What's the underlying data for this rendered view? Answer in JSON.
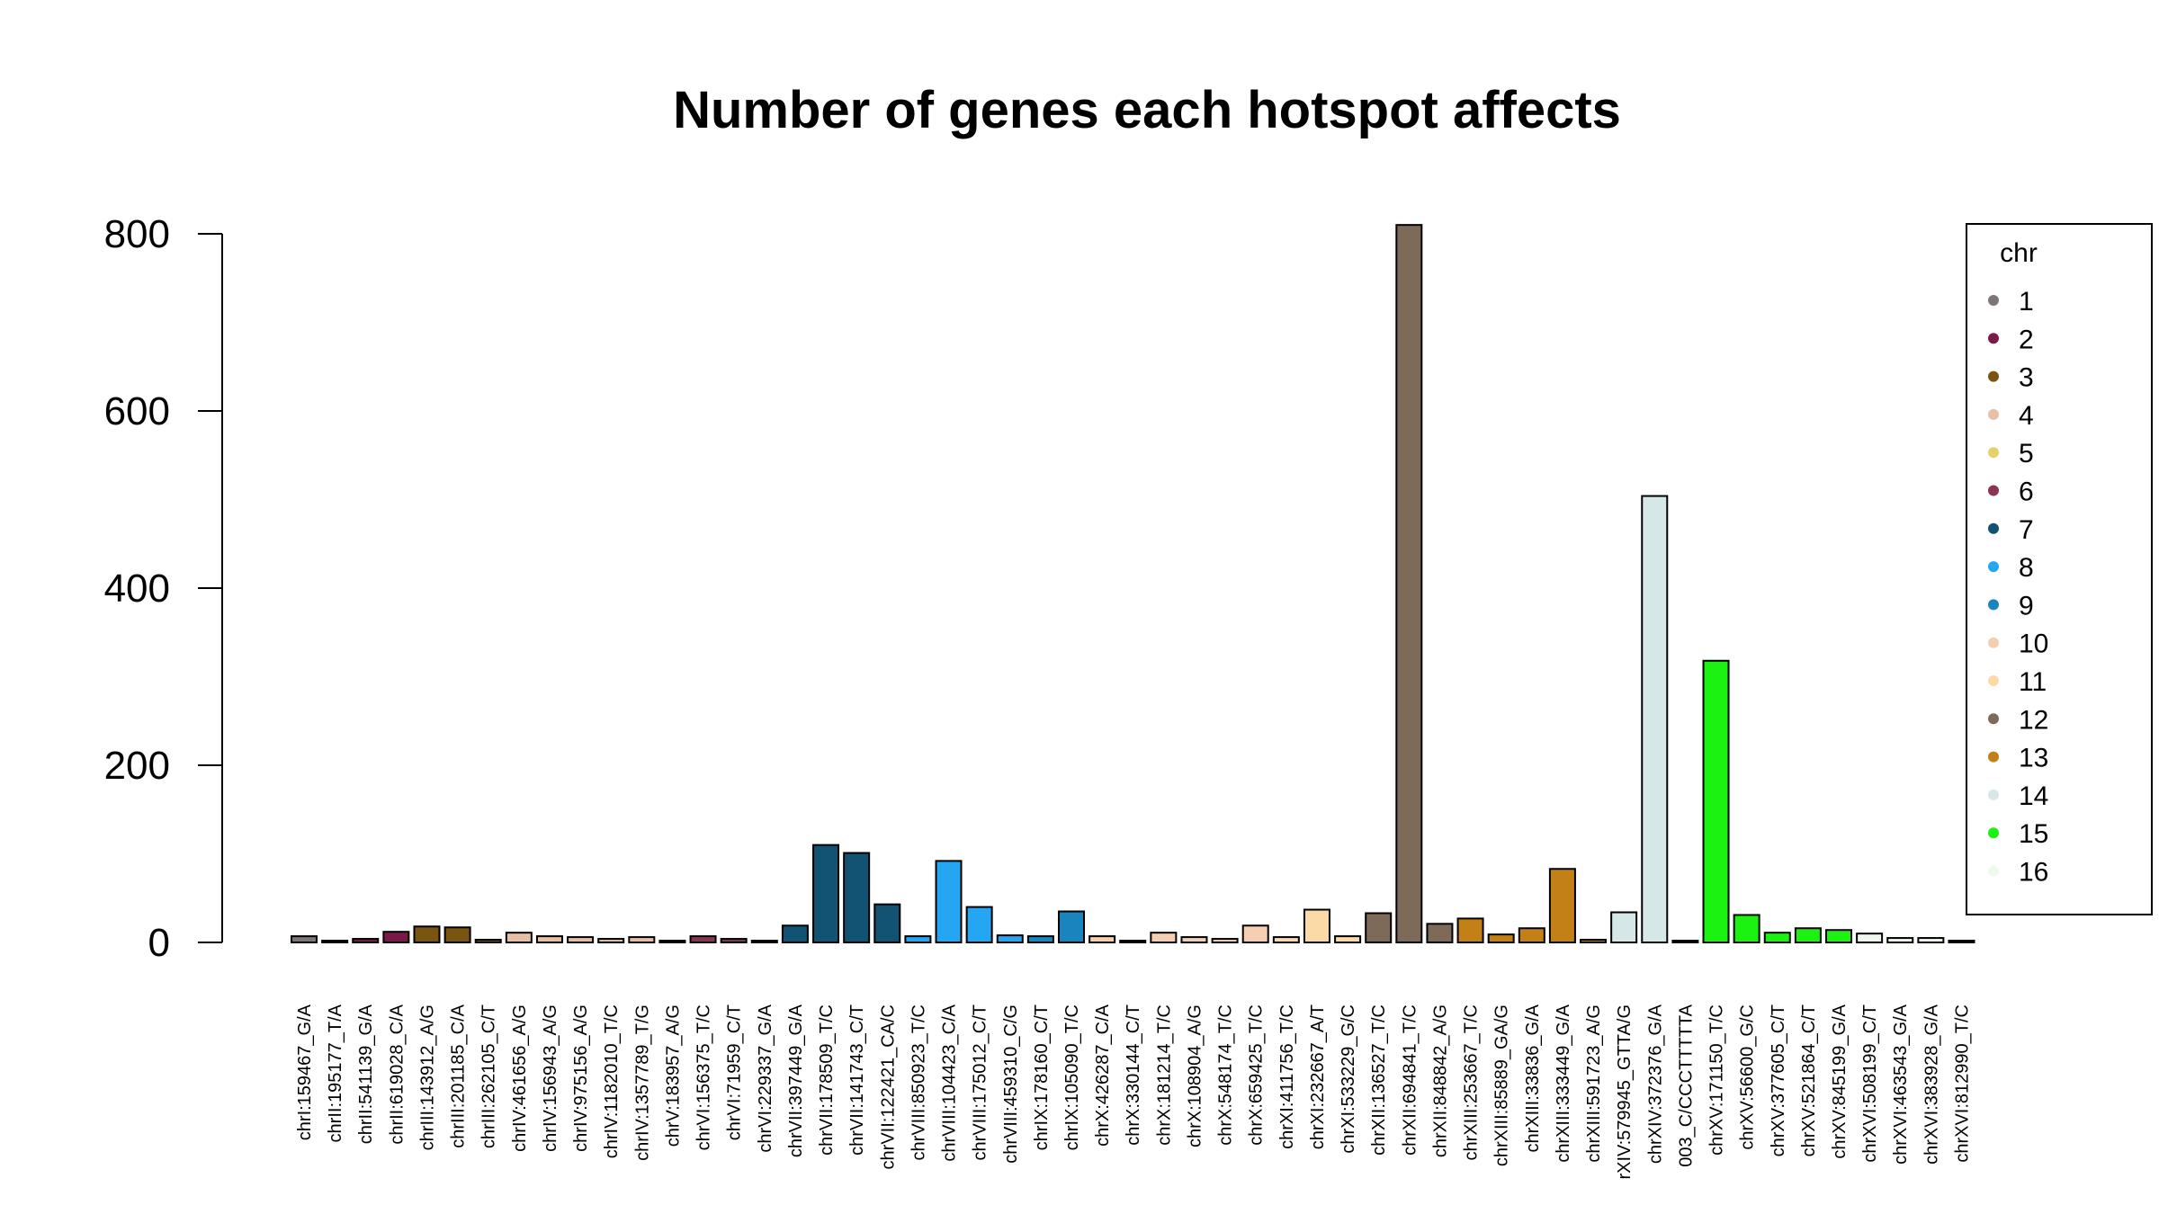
{
  "chart_data": {
    "type": "bar",
    "title": "Number of genes each hotspot affects",
    "xlabel": "",
    "ylabel": "",
    "ylim": [
      0,
      810
    ],
    "yticks": [
      "0",
      "200",
      "400",
      "600",
      "800"
    ],
    "grid": false,
    "legend_position": "top-right",
    "legend": {
      "title": "chr",
      "entries": [
        {
          "label": "1",
          "color": "#7f7577"
        },
        {
          "label": "2",
          "color": "#7b1a49"
        },
        {
          "label": "3",
          "color": "#7a5411"
        },
        {
          "label": "4",
          "color": "#e6bfa4"
        },
        {
          "label": "5",
          "color": "#e5d06b"
        },
        {
          "label": "6",
          "color": "#8a3551"
        },
        {
          "label": "7",
          "color": "#125272"
        },
        {
          "label": "8",
          "color": "#24a6f2"
        },
        {
          "label": "9",
          "color": "#1a84bf"
        },
        {
          "label": "10",
          "color": "#f6cfb3"
        },
        {
          "label": "11",
          "color": "#fbdaa8"
        },
        {
          "label": "12",
          "color": "#7d6a59"
        },
        {
          "label": "13",
          "color": "#c28016"
        },
        {
          "label": "14",
          "color": "#d6e7e8"
        },
        {
          "label": "15",
          "color": "#1cf211"
        },
        {
          "label": "16",
          "color": "#eef8ec"
        }
      ]
    },
    "categories": [
      "chrI:159467_G/A",
      "chrII:195177_T/A",
      "chrII:541139_G/A",
      "chrII:619028_C/A",
      "chrIII:143912_A/G",
      "chrIII:201185_C/A",
      "chrIII:262105_C/T",
      "chrIV:461656_A/G",
      "chrIV:156943_A/G",
      "chrIV:975156_A/G",
      "chrIV:1182010_T/C",
      "chrIV:1357789_T/G",
      "chrV:183957_A/G",
      "chrVI:156375_T/C",
      "chrVI:71959_C/T",
      "chrVI:229337_G/A",
      "chrVII:397449_G/A",
      "chrVII:178509_T/C",
      "chrVII:141743_C/T",
      "chrVII:122421_CA/C",
      "chrVIII:850923_T/C",
      "chrVIII:104423_C/A",
      "chrVIII:175012_C/T",
      "chrVIII:459310_C/G",
      "chrIX:178160_C/T",
      "chrIX:105090_T/C",
      "chrX:426287_C/A",
      "chrX:330144_C/T",
      "chrX:181214_T/C",
      "chrX:108904_A/G",
      "chrX:548174_T/C",
      "chrX:659425_T/C",
      "chrXI:411756_T/C",
      "chrXI:232667_A/T",
      "chrXI:533229_G/C",
      "chrXII:136527_T/C",
      "chrXII:694841_T/C",
      "chrXII:848842_A/G",
      "chrXIII:253667_T/C",
      "chrXIII:85889_GA/G",
      "chrXIII:33836_G/A",
      "chrXIII:333449_G/A",
      "chrXIII:591723_A/G",
      "rXIV:579945_GTTA/G",
      "chrXIV:372376_G/A",
      "003_C/CCCTTTTTA",
      "chrXV:171150_T/C",
      "chrXV:56600_G/C",
      "chrXV:377605_C/T",
      "chrXV:521864_C/T",
      "chrXV:845199_G/A",
      "chrXVI:508199_C/T",
      "chrXVI:463543_G/A",
      "chrXVI:383928_G/A",
      "chrXVI:812990_T/C"
    ],
    "values": [
      7,
      2,
      4,
      12,
      18,
      17,
      3,
      11,
      7,
      6,
      4,
      6,
      2,
      7,
      4,
      2,
      19,
      110,
      101,
      43,
      7,
      92,
      40,
      8,
      7,
      35,
      7,
      2,
      11,
      6,
      4,
      19,
      6,
      37,
      7,
      33,
      810,
      21,
      27,
      9,
      16,
      83,
      3,
      34,
      504,
      2,
      318,
      31,
      11,
      16,
      14,
      10,
      5,
      5,
      2
    ],
    "bar_colors": [
      "#7f7577",
      "#7b1a49",
      "#7b1a49",
      "#7b1a49",
      "#7a5411",
      "#7a5411",
      "#7a5411",
      "#e6bfa4",
      "#e6bfa4",
      "#e6bfa4",
      "#e6bfa4",
      "#e6bfa4",
      "#e5d06b",
      "#8a3551",
      "#8a3551",
      "#8a3551",
      "#125272",
      "#125272",
      "#125272",
      "#125272",
      "#24a6f2",
      "#24a6f2",
      "#24a6f2",
      "#24a6f2",
      "#1a84bf",
      "#1a84bf",
      "#f6cfb3",
      "#f6cfb3",
      "#f6cfb3",
      "#f6cfb3",
      "#f6cfb3",
      "#f6cfb3",
      "#fbdaa8",
      "#fbdaa8",
      "#fbdaa8",
      "#7d6a59",
      "#7d6a59",
      "#7d6a59",
      "#c28016",
      "#c28016",
      "#c28016",
      "#c28016",
      "#c28016",
      "#d6e7e8",
      "#d6e7e8",
      "#d6e7e8",
      "#1cf211",
      "#1cf211",
      "#1cf211",
      "#1cf211",
      "#1cf211",
      "#eef8ec",
      "#eef8ec",
      "#eef8ec",
      "#eef8ec"
    ]
  }
}
